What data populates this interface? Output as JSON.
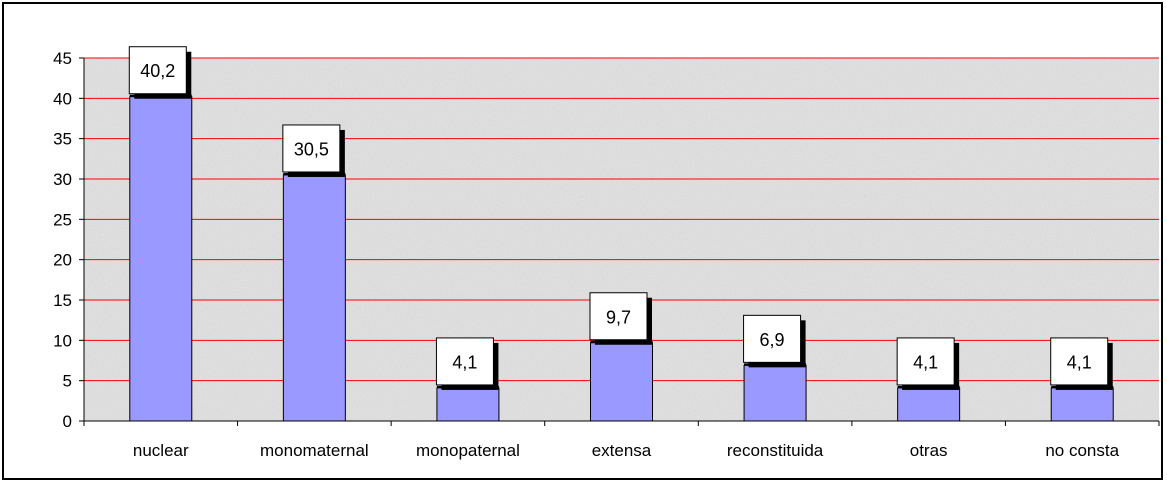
{
  "chart_data": {
    "type": "bar",
    "categories": [
      "nuclear",
      "monomaternal",
      "monopaternal",
      "extensa",
      "reconstituida",
      "otras",
      "no consta"
    ],
    "values": [
      40.2,
      30.5,
      4.1,
      9.7,
      6.9,
      4.1,
      4.1
    ],
    "value_labels": [
      "40,2",
      "30,5",
      "4,1",
      "9,7",
      "6,9",
      "4,1",
      "4,1"
    ],
    "ylim": [
      0,
      45
    ],
    "yticks": [
      "0",
      "5",
      "10",
      "15",
      "20",
      "25",
      "30",
      "35",
      "40",
      "45"
    ],
    "grid": true,
    "legend": "none",
    "colors": {
      "bar_fill": "#9999ff",
      "gridline": "#ff0000",
      "plot_background": "#e6e6e6"
    }
  }
}
